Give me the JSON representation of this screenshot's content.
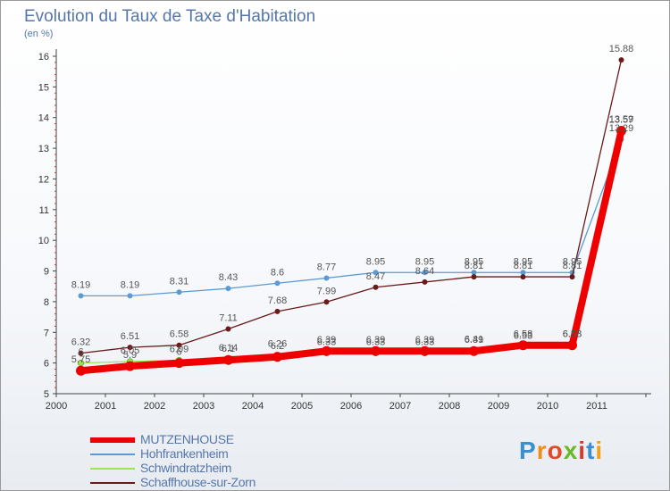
{
  "title": "Evolution du Taux de Taxe d'Habitation",
  "unit_label": "(en %)",
  "brand": {
    "letters": [
      "P",
      "r",
      "o",
      "x",
      "i",
      "t",
      "i"
    ],
    "colors": [
      "#3a8fd0",
      "#f08c1a",
      "#e04a2a",
      "#6ab82a",
      "#e0352a",
      "#3a8fd0",
      "#f0a21a"
    ]
  },
  "chart_data": {
    "type": "line",
    "title": "Evolution du Taux de Taxe d'Habitation",
    "ylabel": "(en %)",
    "xlabel": "",
    "x": [
      "2000",
      "2001",
      "2002",
      "2003",
      "2004",
      "2005",
      "2006",
      "2007",
      "2008",
      "2009",
      "2010",
      "2011"
    ],
    "ylim": [
      5,
      16
    ],
    "yticks": [
      "5",
      "6",
      "7",
      "8",
      "9",
      "10",
      "11",
      "12",
      "13",
      "14",
      "15",
      "16"
    ],
    "series": [
      {
        "name": "MUTZENHOUSE",
        "color": "#ee0000",
        "values": [
          5.75,
          5.9,
          6.0,
          6.1,
          6.2,
          6.39,
          6.39,
          6.39,
          6.39,
          6.58,
          6.58,
          13.57
        ],
        "labels": [
          "5.75",
          "5.9",
          "6",
          "6.1",
          "6.2",
          "6.39",
          "6.39",
          "6.39",
          "6.39",
          "6.58",
          "6.58",
          "13.57"
        ]
      },
      {
        "name": "Hohfrankenheim",
        "color": "#5b9bd5",
        "values": [
          8.19,
          8.19,
          8.31,
          8.43,
          8.6,
          8.77,
          8.95,
          8.95,
          8.95,
          8.95,
          8.95,
          13.29
        ],
        "labels": [
          "8.19",
          "8.19",
          "8.31",
          "8.43",
          "8.6",
          "8.77",
          "8.95",
          "8.95",
          "8.95",
          "8.95",
          "8.95",
          "13.29"
        ]
      },
      {
        "name": "Schwindratzheim",
        "color": "#99e64d",
        "values": [
          6.0,
          6.05,
          6.09,
          6.14,
          6.26,
          6.33,
          6.33,
          6.33,
          6.41,
          6.53,
          6.58,
          13.59
        ],
        "labels": [
          "6",
          "6.05",
          "6.09",
          "6.14",
          "6.26",
          "6.33",
          "6.33",
          "6.33",
          "6.41",
          "6.53",
          "6.58",
          "13.59"
        ]
      },
      {
        "name": "Schaffhouse-sur-Zorn",
        "color": "#6b1a1a",
        "values": [
          6.32,
          6.51,
          6.58,
          7.11,
          7.68,
          7.99,
          8.47,
          8.64,
          8.81,
          8.81,
          8.81,
          15.88
        ],
        "labels": [
          "6.32",
          "6.51",
          "6.58",
          "7.11",
          "7.68",
          "7.99",
          "8.47",
          "8.64",
          "8.81",
          "8.81",
          "8.81",
          "15.88"
        ]
      }
    ]
  }
}
